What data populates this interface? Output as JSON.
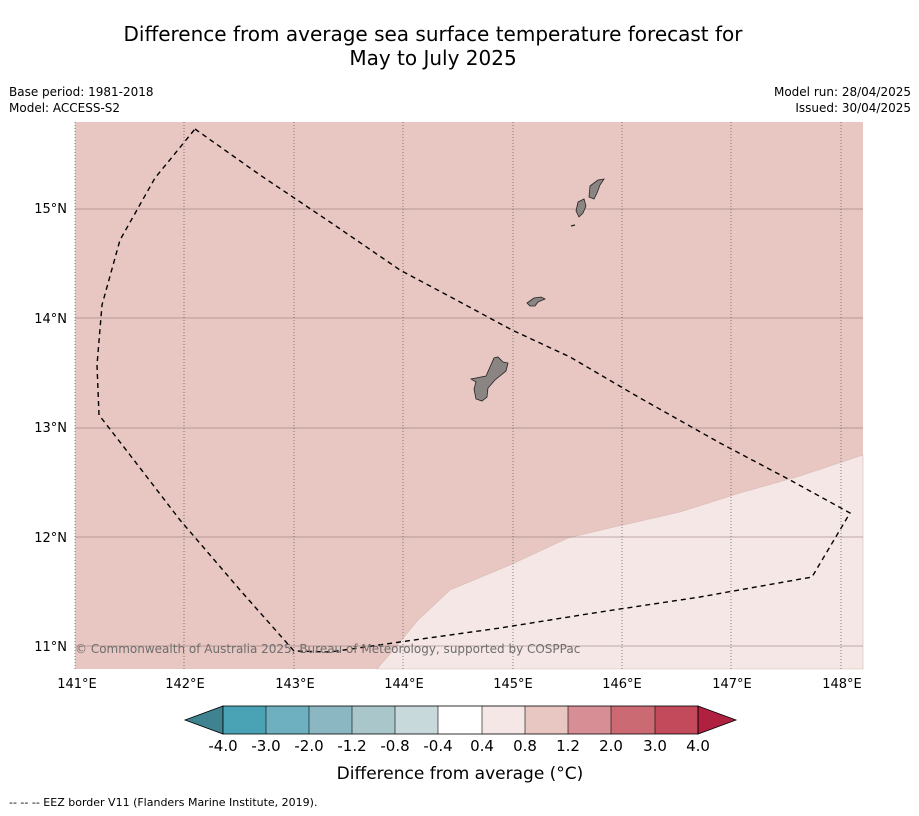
{
  "title_line1": "Difference from average sea surface temperature forecast for",
  "title_line2": "May to July 2025",
  "meta": {
    "base_period": "Base period: 1981-2018",
    "model": "Model: ACCESS-S2",
    "model_run": "Model run: 28/04/2025",
    "issued": "Issued: 30/04/2025"
  },
  "map": {
    "lon_labels": [
      "141°E",
      "142°E",
      "143°E",
      "144°E",
      "145°E",
      "146°E",
      "147°E",
      "148°E"
    ],
    "lat_labels": [
      "15°N",
      "14°N",
      "13°N",
      "12°N",
      "11°N"
    ],
    "copyright": "© Commonwealth of Australia 2025, Bureau of Meteorology, supported by COSPPac",
    "colors": {
      "warm_0_8_1_2": "#e8c6c2",
      "warm_0_4_0_8": "#f4e7e5",
      "land": "#8a8583"
    }
  },
  "colorbar": {
    "ticks": [
      "-4.0",
      "-3.0",
      "-2.0",
      "-1.2",
      "-0.8",
      "-0.4",
      "0.4",
      "0.8",
      "1.2",
      "2.0",
      "3.0",
      "4.0"
    ],
    "colors": [
      "#3f8390",
      "#4aa3b4",
      "#6eb0bf",
      "#8bb7c2",
      "#a9c7cb",
      "#c8d9db",
      "#ffffff",
      "#f4e7e5",
      "#e8c6c2",
      "#d88e95",
      "#cc6a74",
      "#c34a5b",
      "#b02040"
    ],
    "label": "Difference from average (°C)"
  },
  "footer": "--  --  -- EEZ border V11 (Flanders Marine Institute, 2019)."
}
